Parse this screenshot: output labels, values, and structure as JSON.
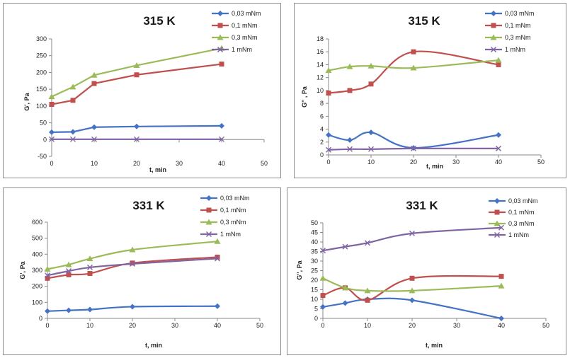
{
  "colors": {
    "s1": "#4472c4",
    "s2": "#c0504d",
    "s3": "#9bbb59",
    "s4": "#8064a2"
  },
  "chart_data": [
    {
      "type": "line",
      "title": "315 K",
      "xlabel": "t, min",
      "ylabel": "G', Pa",
      "xlim": [
        0,
        50
      ],
      "ylim": [
        -50,
        300
      ],
      "xticks": [
        0,
        10,
        20,
        30,
        40,
        50
      ],
      "yticks": [
        -50,
        0,
        50,
        100,
        150,
        200,
        250,
        300
      ],
      "x": [
        0,
        5,
        10,
        20,
        40
      ],
      "series": [
        {
          "name": "0,03 mNm",
          "marker": "diamond",
          "values": [
            22,
            23,
            37,
            39,
            41
          ]
        },
        {
          "name": "0,1 mNm",
          "marker": "square",
          "values": [
            105,
            117,
            167,
            193,
            225
          ]
        },
        {
          "name": "0,3 mNm",
          "marker": "triangle",
          "values": [
            128,
            157,
            192,
            221,
            272
          ]
        },
        {
          "name": "1 mNm",
          "marker": "x",
          "values": [
            1,
            1,
            1,
            1,
            1
          ]
        }
      ]
    },
    {
      "type": "line",
      "title": "315 K",
      "xlabel": "t, min",
      "ylabel": "G'' , Pa",
      "xlim": [
        0,
        50
      ],
      "ylim": [
        0,
        18
      ],
      "xticks": [
        0,
        10,
        20,
        30,
        40,
        50
      ],
      "yticks": [
        0,
        2,
        4,
        6,
        8,
        10,
        12,
        14,
        16,
        18
      ],
      "x": [
        0,
        5,
        10,
        20,
        40
      ],
      "series": [
        {
          "name": "0,03 mNm",
          "marker": "diamond",
          "values": [
            3.1,
            2.3,
            3.5,
            1.1,
            3.1
          ]
        },
        {
          "name": "0,1 mNm",
          "marker": "square",
          "values": [
            9.6,
            10.0,
            11.0,
            16.0,
            14.0
          ]
        },
        {
          "name": "0,3 mNm",
          "marker": "triangle",
          "values": [
            13.1,
            13.7,
            13.8,
            13.5,
            14.7
          ]
        },
        {
          "name": "1 mNm",
          "marker": "x",
          "values": [
            0.8,
            0.9,
            0.9,
            1.0,
            1.0
          ]
        }
      ]
    },
    {
      "type": "line",
      "title": "331 K",
      "xlabel": "t, min",
      "ylabel": "G', Pa",
      "xlim": [
        0,
        50
      ],
      "ylim": [
        0,
        600
      ],
      "xticks": [
        0,
        10,
        20,
        30,
        40,
        50
      ],
      "yticks": [
        0,
        100,
        200,
        300,
        400,
        500,
        600
      ],
      "x": [
        0,
        5,
        10,
        20,
        40
      ],
      "series": [
        {
          "name": "0,03 mNm",
          "marker": "diamond",
          "values": [
            45,
            50,
            55,
            73,
            76
          ]
        },
        {
          "name": "0,1 mNm",
          "marker": "square",
          "values": [
            250,
            272,
            280,
            345,
            382
          ]
        },
        {
          "name": "0,3 mNm",
          "marker": "triangle",
          "values": [
            307,
            335,
            372,
            428,
            480
          ]
        },
        {
          "name": "1 mNm",
          "marker": "x",
          "values": [
            268,
            295,
            318,
            340,
            373
          ]
        }
      ]
    },
    {
      "type": "line",
      "title": "331 K",
      "xlabel": "t, min",
      "ylabel": "G'', Pa",
      "xlim": [
        0,
        50
      ],
      "ylim": [
        0,
        50
      ],
      "xticks": [
        0,
        10,
        20,
        30,
        40,
        50
      ],
      "yticks": [
        0,
        5,
        10,
        15,
        20,
        25,
        30,
        35,
        40,
        45,
        50
      ],
      "x": [
        0,
        5,
        10,
        20,
        40
      ],
      "series": [
        {
          "name": "0,03 mNm",
          "marker": "diamond",
          "values": [
            6,
            8,
            10,
            9.5,
            0
          ]
        },
        {
          "name": "0,1 mNm",
          "marker": "square",
          "values": [
            12,
            16,
            9.5,
            21,
            22
          ]
        },
        {
          "name": "0,3 mNm",
          "marker": "triangle",
          "values": [
            21,
            16,
            14.5,
            14.5,
            17
          ]
        },
        {
          "name": "1 mNm",
          "marker": "x",
          "values": [
            35.5,
            37.5,
            39.5,
            44.5,
            47.5
          ]
        }
      ]
    }
  ]
}
